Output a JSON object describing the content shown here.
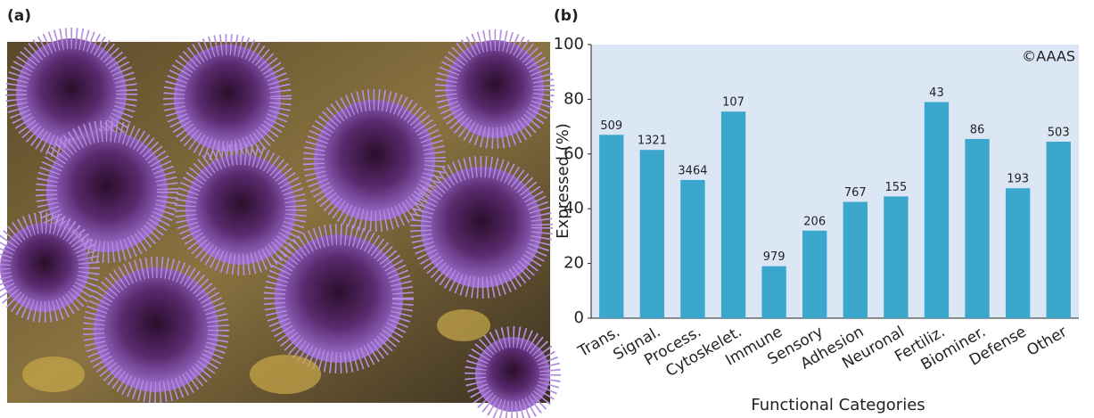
{
  "panel_a": {
    "label": "(a)"
  },
  "chart_data": {
    "type": "bar",
    "panel_label": "(b)",
    "annotation": "©AAAS",
    "x_label": "Functional Categories",
    "y_label": "Expressed (%)",
    "categories": [
      "Trans.",
      "Signal.",
      "Process.",
      "Cytoskelet.",
      "Immune",
      "Sensory",
      "Adhesion",
      "Neuronal",
      "Fertiliz.",
      "Biominer.",
      "Defense",
      "Other"
    ],
    "values": [
      67,
      61.5,
      50.5,
      75.5,
      19,
      32,
      42.5,
      44.5,
      79,
      65.5,
      47.5,
      64.5
    ],
    "gene_counts": [
      509,
      1321,
      3464,
      107,
      979,
      206,
      767,
      155,
      43,
      86,
      193,
      503
    ],
    "color": "#3ba7cc",
    "background": "#dbe7f5",
    "ylim": [
      0,
      100
    ],
    "yticks": [
      0,
      20,
      40,
      60,
      80,
      100
    ],
    "grid": false
  }
}
